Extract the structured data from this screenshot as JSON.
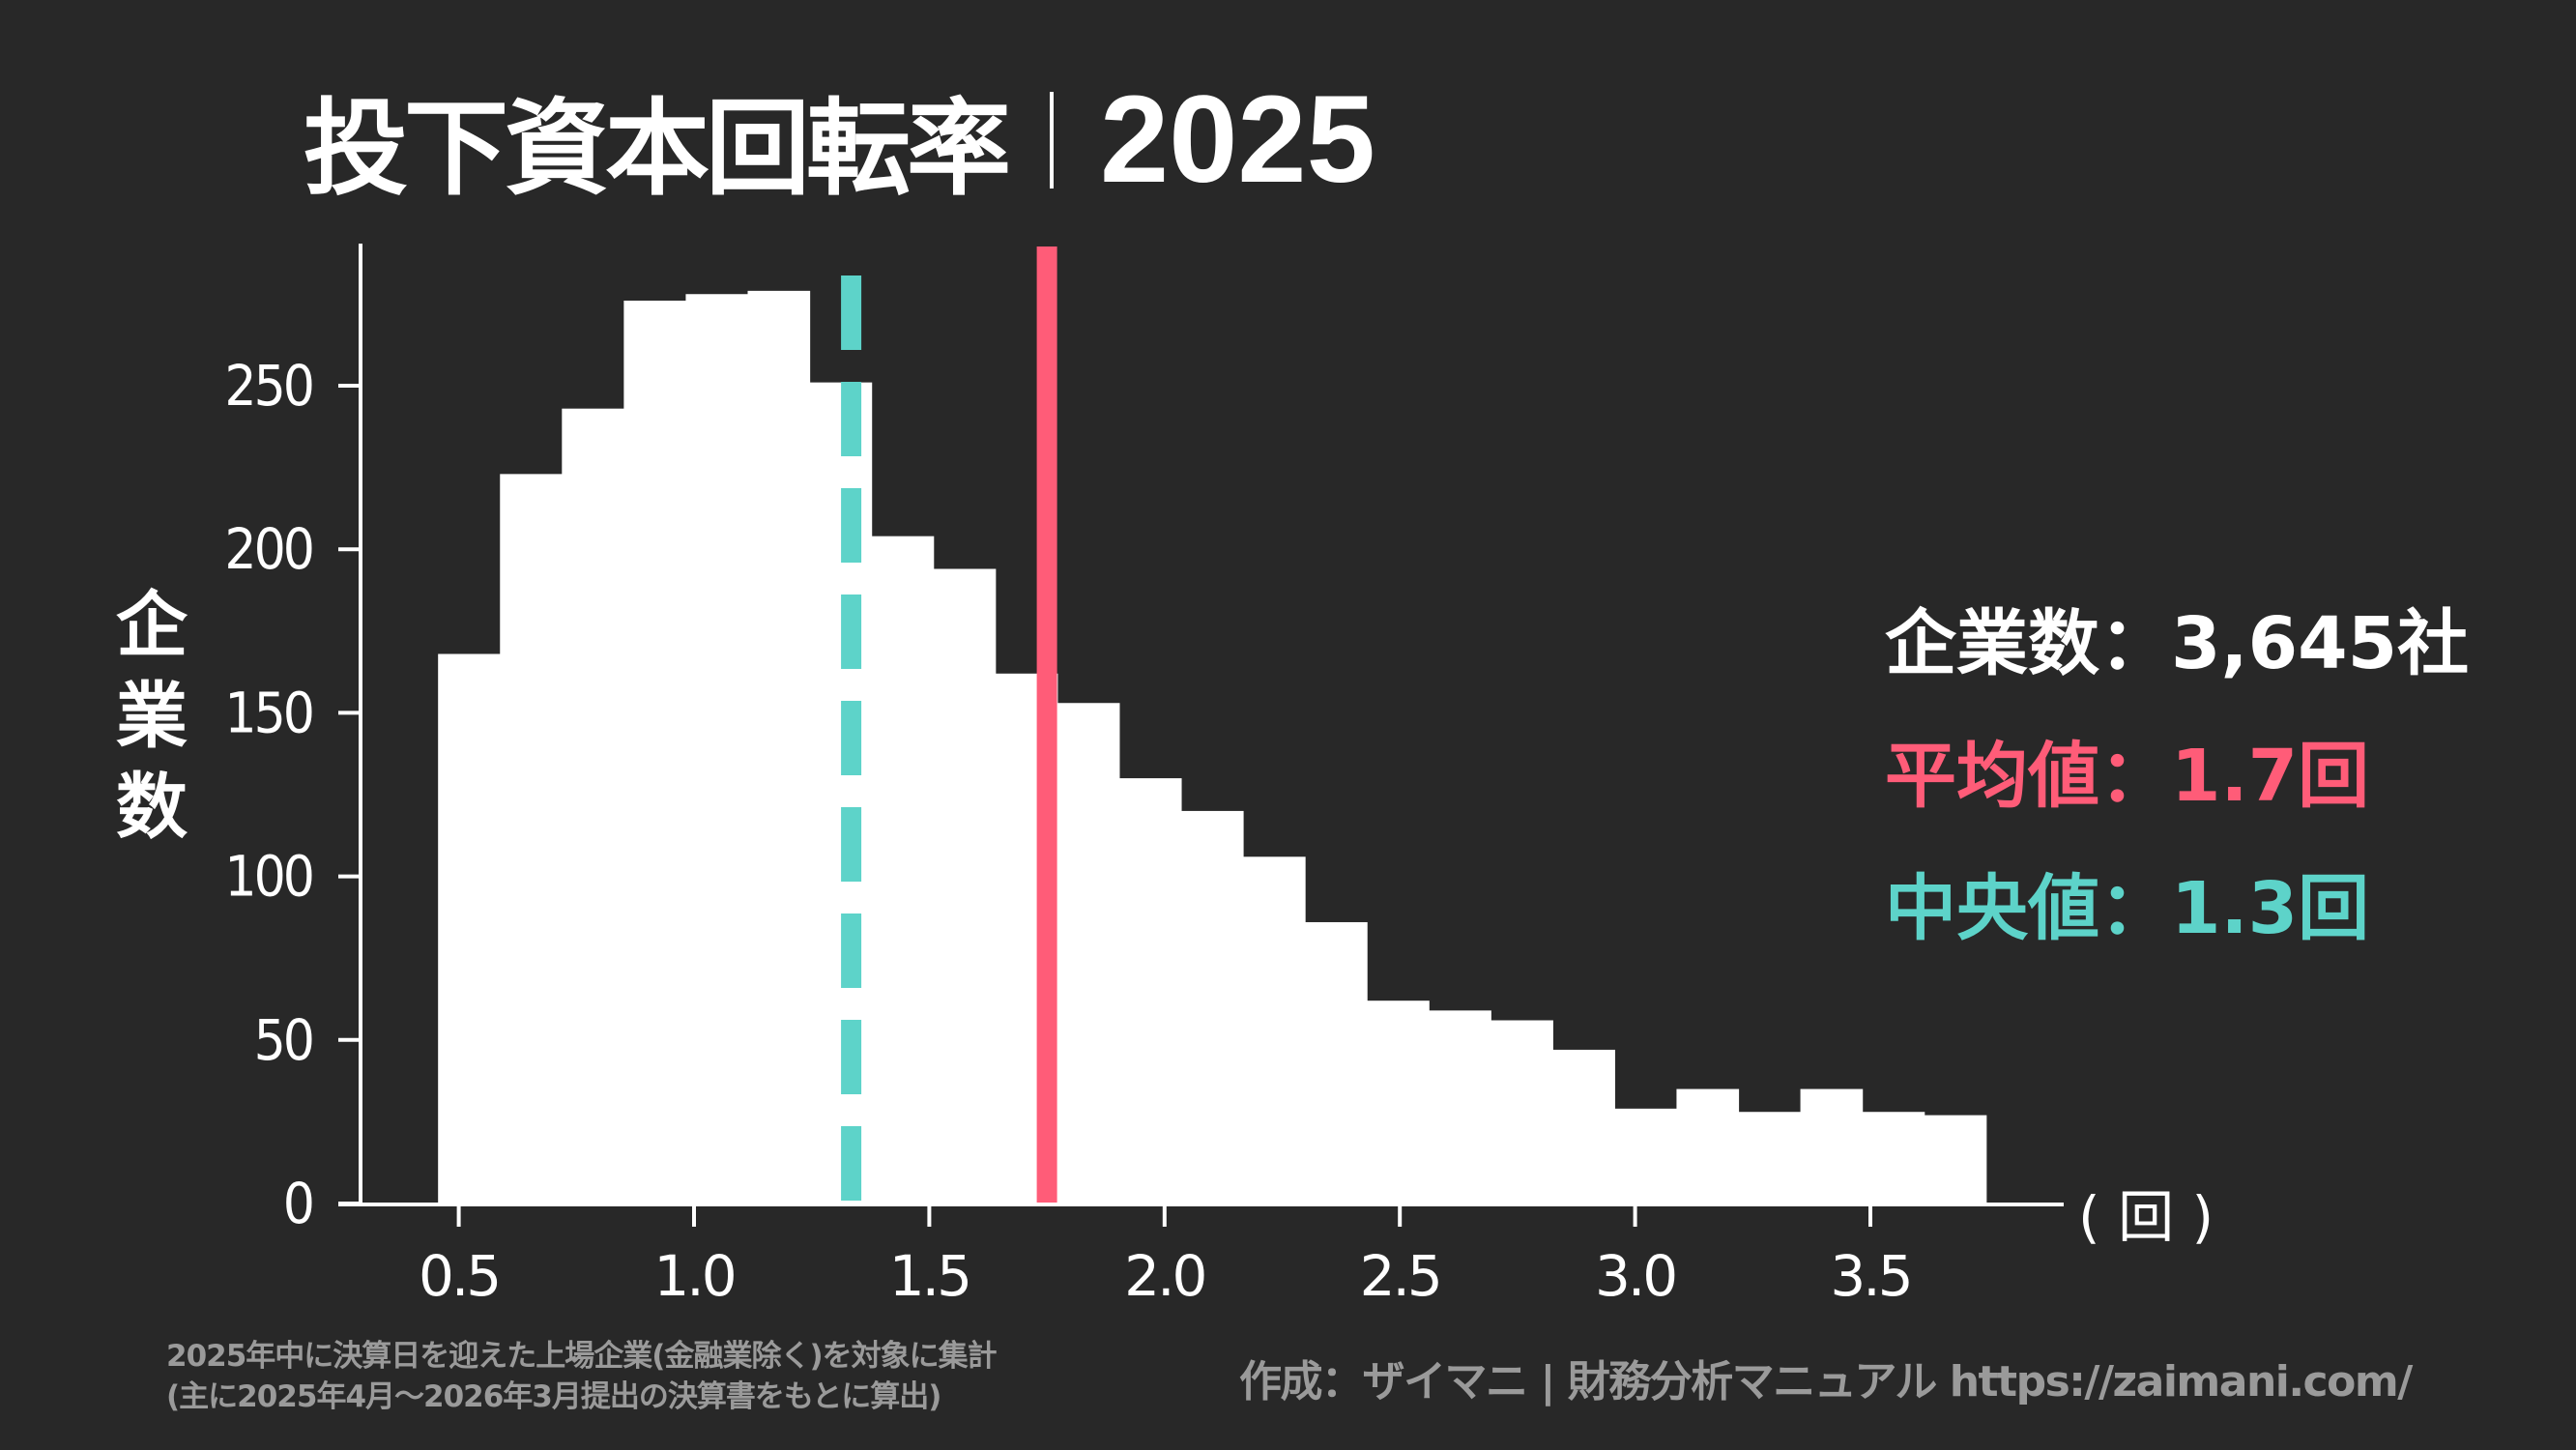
{
  "title": {
    "main": "投下資本回転率",
    "year": "2025"
  },
  "stats": {
    "companies_label": "企業数",
    "companies_value": "3,645社",
    "mean_label": "平均値",
    "mean_value": "1.7回",
    "median_label": "中央値",
    "median_value": "1.3回",
    "separator": "："
  },
  "axis": {
    "y_label_chars": [
      "企",
      "業",
      "数"
    ],
    "x_unit": "( 回 )"
  },
  "footer": {
    "left_line1": "2025年中に決算日を迎えた上場企業(金融業除く)を対象に集計",
    "left_line2": "(主に2025年4月〜2026年3月提出の決算書をもとに算出)",
    "right": "作成：ザイマニ | 財務分析マニュアル https://zaimani.com/"
  },
  "colors": {
    "background": "#282828",
    "bars": "#ffffff",
    "mean": "#ff5c78",
    "median": "#5dd3c9",
    "footer": "#9a9a9a"
  },
  "chart_data": {
    "type": "bar",
    "subtype": "histogram",
    "title": "投下資本回転率｜2025",
    "xlabel": "(回)",
    "ylabel": "企業数",
    "bin_start": 0.456,
    "bin_width": 0.1316,
    "bin_edges": [
      0.456,
      0.588,
      0.719,
      0.851,
      0.982,
      1.114,
      1.246,
      1.377,
      1.509,
      1.64,
      1.772,
      1.904,
      2.035,
      2.167,
      2.298,
      2.43,
      2.562,
      2.693,
      2.825,
      2.956,
      3.088,
      3.22,
      3.351,
      3.483,
      3.614,
      3.746
    ],
    "values": [
      168,
      223,
      243,
      276,
      278,
      279,
      251,
      204,
      194,
      162,
      153,
      130,
      120,
      106,
      86,
      62,
      59,
      56,
      47,
      29,
      35,
      28,
      35,
      28,
      27
    ],
    "xlim": [
      0.246,
      3.913
    ],
    "ylim": [
      0,
      292
    ],
    "xticks": [
      0.5,
      1.0,
      1.5,
      2.0,
      2.5,
      3.0,
      3.5
    ],
    "xtick_labels": [
      "0.5",
      "1.0",
      "1.5",
      "2.0",
      "2.5",
      "3.0",
      "3.5"
    ],
    "yticks": [
      0,
      50,
      100,
      150,
      200,
      250
    ],
    "ytick_labels": [
      "0",
      "50",
      "100",
      "150",
      "200",
      "250"
    ],
    "grid": false,
    "reference_lines": [
      {
        "name": "平均値",
        "value": 1.75,
        "label": "1.7回",
        "style": "solid",
        "color": "#ff5c78"
      },
      {
        "name": "中央値",
        "value": 1.334,
        "label": "1.3回",
        "style": "dashed",
        "color": "#5dd3c9"
      }
    ],
    "annotations": [
      "企業数：3,645社",
      "平均値：1.7回",
      "中央値：1.3回"
    ]
  }
}
